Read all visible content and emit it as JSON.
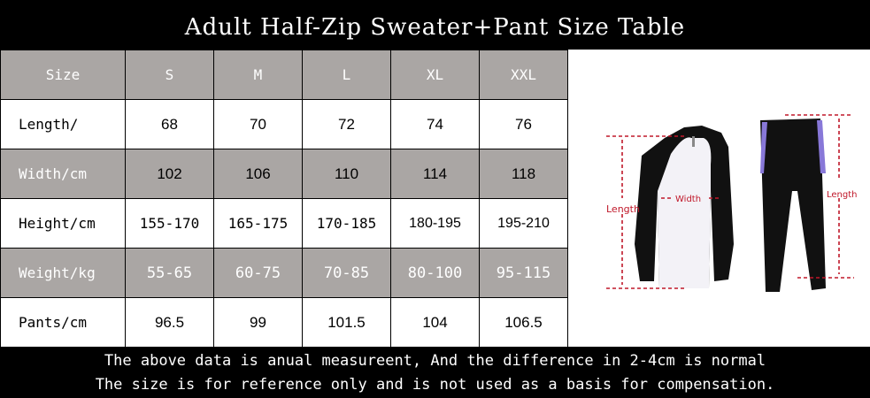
{
  "title": "Adult Half-Zip Sweater+Pant Size Table",
  "table": {
    "header": [
      "Size",
      "S",
      "M",
      "L",
      "XL",
      "XXL"
    ],
    "rows": [
      {
        "label": "Length/",
        "values": [
          "68",
          "70",
          "72",
          "74",
          "76"
        ]
      },
      {
        "label": "Width/cm",
        "values": [
          "102",
          "106",
          "110",
          "114",
          "118"
        ]
      },
      {
        "label": "Height/cm",
        "values": [
          "155-170",
          "165-175",
          "170-185",
          "180-195",
          "195-210"
        ]
      },
      {
        "label": "Weight/kg",
        "values": [
          "55-65",
          "60-75",
          "70-85",
          "80-100",
          "95-115"
        ]
      },
      {
        "label": "Pants/cm",
        "values": [
          "96.5",
          "99",
          "101.5",
          "104",
          "106.5"
        ]
      }
    ]
  },
  "figure": {
    "top_length": "Length",
    "top_width": "Width",
    "pants_length": "Length",
    "measure_color": "#c0182a"
  },
  "footer": {
    "line1": "The above data is anual measureent, And the difference in 2-4cm is normal",
    "line2": "The size is for reference only and is not used as a basis for compensation."
  }
}
